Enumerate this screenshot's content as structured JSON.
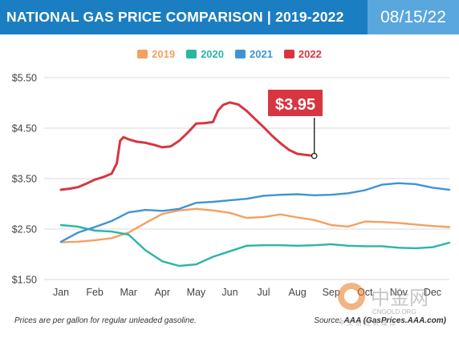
{
  "header": {
    "title": "NATIONAL GAS PRICE COMPARISON | 2019-2022",
    "date": "08/15/22",
    "bg_color": "#1b7ec2",
    "date_bg_color": "#59a7dc"
  },
  "footer": {
    "note": "Prices are per gallon for regular unleaded gasoline.",
    "source_label": "Source:",
    "source": "AAA (GasPrices.AAA.com)"
  },
  "watermark": {
    "text": "中金网",
    "subtext": "CNGOLD.ORG",
    "tagline": "中 文 财 经 新 媒 体"
  },
  "callout": {
    "label": "$3.95",
    "year": "2022",
    "month_index": 7.5,
    "value": 3.95,
    "color": "#d73641"
  },
  "chart_data": {
    "type": "line",
    "title": "NATIONAL GAS PRICE COMPARISON | 2019-2022",
    "xlabel": "",
    "ylabel": "",
    "categories": [
      "Jan",
      "Feb",
      "Mar",
      "Apr",
      "May",
      "Jun",
      "Jul",
      "Aug",
      "Sep",
      "Oct",
      "Nov",
      "Dec"
    ],
    "y_ticks": [
      "$1.50",
      "$2.50",
      "$3.50",
      "$4.50",
      "$5.50"
    ],
    "ylim": [
      1.5,
      5.5
    ],
    "grid": true,
    "legend_position": "top-center",
    "series": [
      {
        "name": "2019",
        "color": "#f4a062",
        "points": [
          [
            0,
            2.24
          ],
          [
            0.5,
            2.25
          ],
          [
            1,
            2.28
          ],
          [
            1.5,
            2.32
          ],
          [
            2,
            2.43
          ],
          [
            2.5,
            2.62
          ],
          [
            3,
            2.8
          ],
          [
            3.5,
            2.87
          ],
          [
            4,
            2.9
          ],
          [
            4.5,
            2.87
          ],
          [
            5,
            2.82
          ],
          [
            5.5,
            2.72
          ],
          [
            6,
            2.74
          ],
          [
            6.5,
            2.79
          ],
          [
            7,
            2.73
          ],
          [
            7.5,
            2.68
          ],
          [
            8,
            2.58
          ],
          [
            8.5,
            2.55
          ],
          [
            9,
            2.65
          ],
          [
            9.5,
            2.64
          ],
          [
            10,
            2.62
          ],
          [
            10.5,
            2.59
          ],
          [
            11,
            2.56
          ],
          [
            11.5,
            2.54
          ]
        ]
      },
      {
        "name": "2020",
        "color": "#2bb5a5",
        "points": [
          [
            0,
            2.58
          ],
          [
            0.5,
            2.55
          ],
          [
            1,
            2.47
          ],
          [
            1.5,
            2.45
          ],
          [
            2,
            2.39
          ],
          [
            2.5,
            2.08
          ],
          [
            3,
            1.86
          ],
          [
            3.5,
            1.77
          ],
          [
            4,
            1.8
          ],
          [
            4.5,
            1.95
          ],
          [
            5,
            2.06
          ],
          [
            5.5,
            2.17
          ],
          [
            6,
            2.18
          ],
          [
            6.5,
            2.18
          ],
          [
            7,
            2.17
          ],
          [
            7.5,
            2.18
          ],
          [
            8,
            2.2
          ],
          [
            8.5,
            2.17
          ],
          [
            9,
            2.16
          ],
          [
            9.5,
            2.16
          ],
          [
            10,
            2.13
          ],
          [
            10.5,
            2.12
          ],
          [
            11,
            2.14
          ],
          [
            11.5,
            2.23
          ]
        ]
      },
      {
        "name": "2021",
        "color": "#3f94d3",
        "points": [
          [
            0,
            2.25
          ],
          [
            0.5,
            2.43
          ],
          [
            1,
            2.54
          ],
          [
            1.5,
            2.66
          ],
          [
            2,
            2.83
          ],
          [
            2.5,
            2.88
          ],
          [
            3,
            2.86
          ],
          [
            3.5,
            2.9
          ],
          [
            4,
            3.02
          ],
          [
            4.5,
            3.04
          ],
          [
            5,
            3.07
          ],
          [
            5.5,
            3.1
          ],
          [
            6,
            3.16
          ],
          [
            6.5,
            3.18
          ],
          [
            7,
            3.19
          ],
          [
            7.5,
            3.17
          ],
          [
            8,
            3.18
          ],
          [
            8.5,
            3.21
          ],
          [
            9,
            3.27
          ],
          [
            9.5,
            3.38
          ],
          [
            10,
            3.41
          ],
          [
            10.5,
            3.39
          ],
          [
            11,
            3.32
          ],
          [
            11.5,
            3.28
          ]
        ]
      },
      {
        "name": "2022",
        "color": "#d73641",
        "points": [
          [
            0,
            3.28
          ],
          [
            0.25,
            3.3
          ],
          [
            0.5,
            3.33
          ],
          [
            0.75,
            3.4
          ],
          [
            1,
            3.48
          ],
          [
            1.25,
            3.53
          ],
          [
            1.5,
            3.6
          ],
          [
            1.65,
            3.8
          ],
          [
            1.75,
            4.25
          ],
          [
            1.85,
            4.32
          ],
          [
            2.0,
            4.28
          ],
          [
            2.25,
            4.23
          ],
          [
            2.5,
            4.21
          ],
          [
            2.75,
            4.17
          ],
          [
            3.0,
            4.12
          ],
          [
            3.25,
            4.14
          ],
          [
            3.5,
            4.25
          ],
          [
            3.75,
            4.41
          ],
          [
            4.0,
            4.59
          ],
          [
            4.25,
            4.6
          ],
          [
            4.5,
            4.62
          ],
          [
            4.65,
            4.85
          ],
          [
            4.8,
            4.96
          ],
          [
            5.0,
            5.01
          ],
          [
            5.25,
            4.97
          ],
          [
            5.5,
            4.84
          ],
          [
            5.75,
            4.68
          ],
          [
            6.0,
            4.52
          ],
          [
            6.25,
            4.35
          ],
          [
            6.5,
            4.2
          ],
          [
            6.75,
            4.07
          ],
          [
            7.0,
            3.99
          ],
          [
            7.5,
            3.95
          ]
        ]
      }
    ]
  }
}
